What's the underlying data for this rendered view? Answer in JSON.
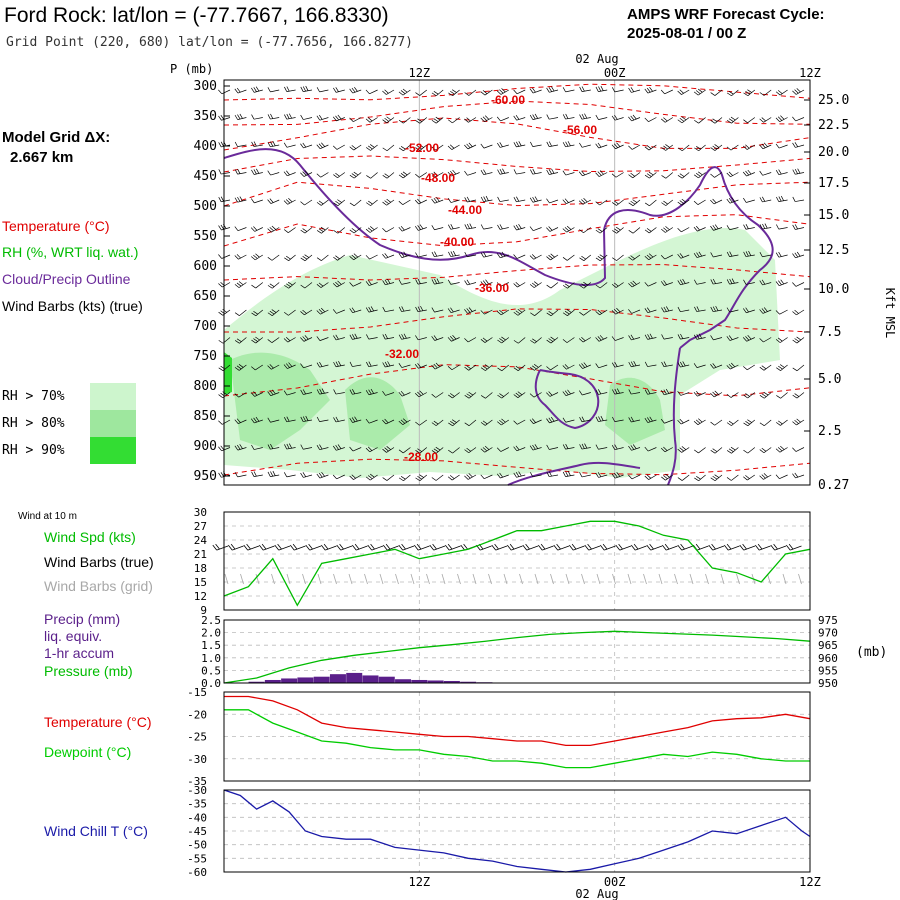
{
  "header": {
    "title": "Ford Rock:  lat/lon = (-77.7667, 166.8330)",
    "grid_point": "Grid Point (220, 680) lat/lon = (-77.7656, 166.8277)",
    "cycle_label": "AMPS WRF Forecast Cycle:",
    "cycle_value": "2025-08-01 / 00  Z"
  },
  "sidebar": {
    "model_grid_label": "Model Grid ΔX:",
    "model_grid_value": "2.667 km",
    "temperature_legend": "Temperature (°C)",
    "rh_legend": "RH (%, WRT liq. wat.)",
    "cloud_legend": "Cloud/Precip Outline",
    "wind_legend": "Wind Barbs (kts) (true)",
    "rh_70": "RH > 70%",
    "rh_80": "RH > 80%",
    "rh_90": "RH > 90%"
  },
  "colors": {
    "temperature": "#e00000",
    "rh": "#00bb00",
    "rh70": "#cdf5cd",
    "rh80": "#9ee79e",
    "rh90": "#33dd33",
    "cloud": "#6a2a9a",
    "wind_true": "#000000",
    "wind_grid": "#a8a8a8",
    "precip": "#5a1f8a",
    "pressure": "#00bb00",
    "windchill": "#1a1aa8",
    "dewpoint": "#00cc00",
    "grid": "#bbbbbb"
  },
  "chart_data": [
    {
      "type": "heatmap",
      "name": "cross-section",
      "ylabel": "P (mb)",
      "y2label": "Kft MSL",
      "x_top_ticks": [
        "12Z",
        "00Z",
        "12Z"
      ],
      "date_label": "02 Aug",
      "pressure_levels": [
        "300",
        "350",
        "400",
        "450",
        "500",
        "550",
        "600",
        "650",
        "700",
        "750",
        "800",
        "850",
        "900",
        "950"
      ],
      "height_ticks": [
        "25.0",
        "22.5",
        "20.0",
        "17.5",
        "15.0",
        "12.5",
        "10.0",
        "7.5",
        "5.0",
        "2.5",
        "0.27"
      ],
      "temperature_labels": [
        "-60.00",
        "-56.00",
        "-52.00",
        "-48.00",
        "-44.00",
        "-40.00",
        "-36.00",
        "-32.00",
        "-28.00"
      ],
      "xlim_hours": [
        0,
        36
      ]
    },
    {
      "type": "line",
      "name": "wind",
      "panel_label": "Wind at 10 m",
      "legend": [
        "Wind Spd (kts)",
        "Wind Barbs (true)",
        "Wind Barbs (grid)"
      ],
      "ylim": [
        9,
        30
      ],
      "y_ticks": [
        "30",
        "27",
        "24",
        "21",
        "18",
        "15",
        "12",
        "9"
      ],
      "x_hours": [
        0,
        1.5,
        3,
        4.5,
        6,
        7.5,
        9,
        10.5,
        12,
        13.5,
        15,
        16.5,
        18,
        19.5,
        21,
        22.5,
        24,
        25.5,
        27,
        28.5,
        30,
        31.5,
        33,
        34.5,
        36
      ],
      "values": [
        12,
        14,
        20,
        10,
        19,
        20,
        21,
        22,
        20,
        21,
        22,
        24,
        26,
        26,
        27,
        28,
        28,
        27,
        25,
        24,
        18,
        17,
        15,
        21,
        22
      ]
    },
    {
      "type": "area",
      "name": "precip-pressure",
      "legend": [
        "Precip (mm)",
        "liq. equiv.",
        "1-hr accum",
        "Pressure (mb)"
      ],
      "ylim_left": [
        0,
        2.5
      ],
      "y_ticks_left": [
        "2.5",
        "2.0",
        "1.5",
        "1.0",
        "0.5",
        "0.0"
      ],
      "ylim_right": [
        950,
        975
      ],
      "y_ticks_right": [
        "975",
        "970",
        "965",
        "960",
        "955",
        "950"
      ],
      "right_unit": "(mb)",
      "pressure_hours": [
        0,
        2,
        4,
        6,
        8,
        10,
        12,
        14,
        16,
        18,
        20,
        22,
        24,
        26,
        28,
        30,
        32,
        34,
        36
      ],
      "pressure_values": [
        950.0,
        952.0,
        956.0,
        959.0,
        961.0,
        962.5,
        964.0,
        965.2,
        966.5,
        968.0,
        969.3,
        970.0,
        970.5,
        970.0,
        969.5,
        969.0,
        968.3,
        967.6,
        966.6
      ],
      "precip_hours": [
        2,
        3,
        4,
        5,
        6,
        7,
        8,
        9,
        10,
        11,
        12,
        13,
        14,
        15,
        16
      ],
      "precip_values": [
        0.05,
        0.12,
        0.18,
        0.22,
        0.25,
        0.35,
        0.4,
        0.3,
        0.25,
        0.15,
        0.12,
        0.1,
        0.08,
        0.05,
        0.03
      ]
    },
    {
      "type": "line",
      "name": "temperature",
      "legend": [
        "Temperature (°C)",
        "Dewpoint (°C)"
      ],
      "ylim": [
        -35,
        -15
      ],
      "y_ticks": [
        "-15",
        "-20",
        "-25",
        "-30",
        "-35"
      ],
      "x_hours": [
        0,
        1.5,
        3,
        4.5,
        6,
        7.5,
        9,
        10.5,
        12,
        13.5,
        15,
        16.5,
        18,
        19.5,
        21,
        22.5,
        24,
        25.5,
        27,
        28.5,
        30,
        31.5,
        33,
        34.5,
        36
      ],
      "series": [
        {
          "name": "Temperature (°C)",
          "values": [
            -16.0,
            -16.0,
            -17.0,
            -19.0,
            -22.0,
            -23.0,
            -23.5,
            -24.0,
            -24.5,
            -25.0,
            -25.0,
            -25.5,
            -26.0,
            -26.0,
            -27.0,
            -27.0,
            -26.0,
            -25.0,
            -24.0,
            -23.0,
            -21.5,
            -21.0,
            -20.8,
            -20.0,
            -21.0
          ]
        },
        {
          "name": "Dewpoint (°C)",
          "values": [
            -19.0,
            -19.0,
            -22.0,
            -24.0,
            -26.0,
            -26.5,
            -27.5,
            -28.0,
            -28.0,
            -29.0,
            -29.5,
            -30.5,
            -30.5,
            -31.0,
            -32.0,
            -32.0,
            -31.0,
            -30.0,
            -29.0,
            -29.5,
            -28.5,
            -29.0,
            -30.0,
            -30.5,
            -30.5
          ]
        }
      ]
    },
    {
      "type": "line",
      "name": "wind-chill",
      "legend": [
        "Wind Chill T (°C)"
      ],
      "ylim": [
        -60,
        -30
      ],
      "y_ticks": [
        "-30",
        "-35",
        "-40",
        "-45",
        "-50",
        "-55",
        "-60"
      ],
      "x_hours": [
        0,
        1,
        2,
        3,
        4,
        5,
        6,
        7.5,
        9,
        10.5,
        12,
        13.5,
        15,
        16.5,
        18,
        19.5,
        21,
        22.5,
        24,
        25.5,
        27,
        28.5,
        30,
        31.5,
        33,
        34.5,
        35.5,
        36
      ],
      "values": [
        -30,
        -32,
        -37,
        -34,
        -38,
        -45,
        -47,
        -48,
        -48,
        -51,
        -52,
        -53,
        -55,
        -56,
        -58,
        -59,
        -60,
        -59,
        -57,
        -55,
        -52,
        -49,
        -45,
        -46,
        -43,
        -40,
        -45,
        -47
      ],
      "x_bottom_ticks": [
        "12Z",
        "00Z",
        "12Z"
      ],
      "date_label": "02 Aug"
    }
  ]
}
